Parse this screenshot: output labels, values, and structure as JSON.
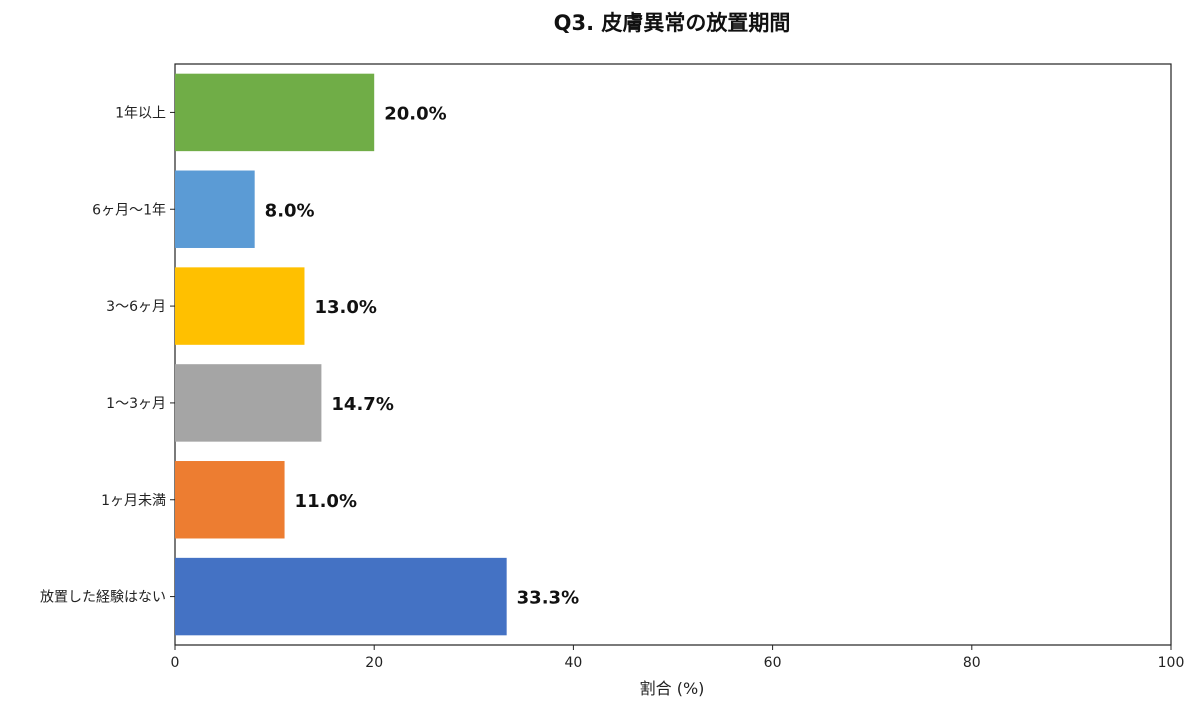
{
  "chart_data": {
    "type": "bar",
    "orientation": "horizontal",
    "title": "Q3. 皮膚異常の放置期間",
    "xlabel": "割合 (%)",
    "ylabel": "",
    "xlim": [
      0,
      100
    ],
    "xticks": [
      0,
      20,
      40,
      60,
      80,
      100
    ],
    "grid": false,
    "categories": [
      "1年以上",
      "6ヶ月〜1年",
      "3〜6ヶ月",
      "1〜3ヶ月",
      "1ヶ月未満",
      "放置した経験はない"
    ],
    "values": [
      20.0,
      8.0,
      13.0,
      14.7,
      11.0,
      33.3
    ],
    "data_labels": [
      "20.0%",
      "8.0%",
      "13.0%",
      "14.7%",
      "11.0%",
      "33.3%"
    ],
    "colors": [
      "#70AD47",
      "#5B9BD5",
      "#FFC000",
      "#A5A5A5",
      "#ED7D31",
      "#4472C4"
    ]
  }
}
